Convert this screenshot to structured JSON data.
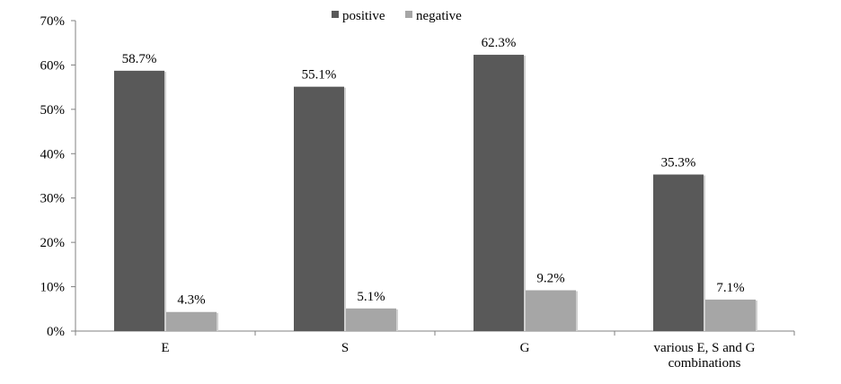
{
  "chart_data": {
    "type": "bar",
    "categories": [
      [
        "E"
      ],
      [
        "S"
      ],
      [
        "G"
      ],
      [
        "various E, S and G",
        "combinations"
      ]
    ],
    "series": [
      {
        "name": "positive",
        "color": "#595959",
        "values": [
          58.7,
          55.1,
          62.3,
          35.3
        ],
        "labels": [
          "58.7%",
          "55.1%",
          "62.3%",
          "35.3%"
        ]
      },
      {
        "name": "negative",
        "color": "#a6a6a6",
        "values": [
          4.3,
          5.1,
          9.2,
          7.1
        ],
        "labels": [
          "4.3%",
          "5.1%",
          "9.2%",
          "7.1%"
        ]
      }
    ],
    "ylim": [
      0,
      70
    ],
    "yticks": [
      0,
      10,
      20,
      30,
      40,
      50,
      60,
      70
    ],
    "ytick_labels": [
      "0%",
      "10%",
      "20%",
      "30%",
      "40%",
      "50%",
      "60%",
      "70%"
    ],
    "grid": false,
    "legend_position": "top"
  }
}
